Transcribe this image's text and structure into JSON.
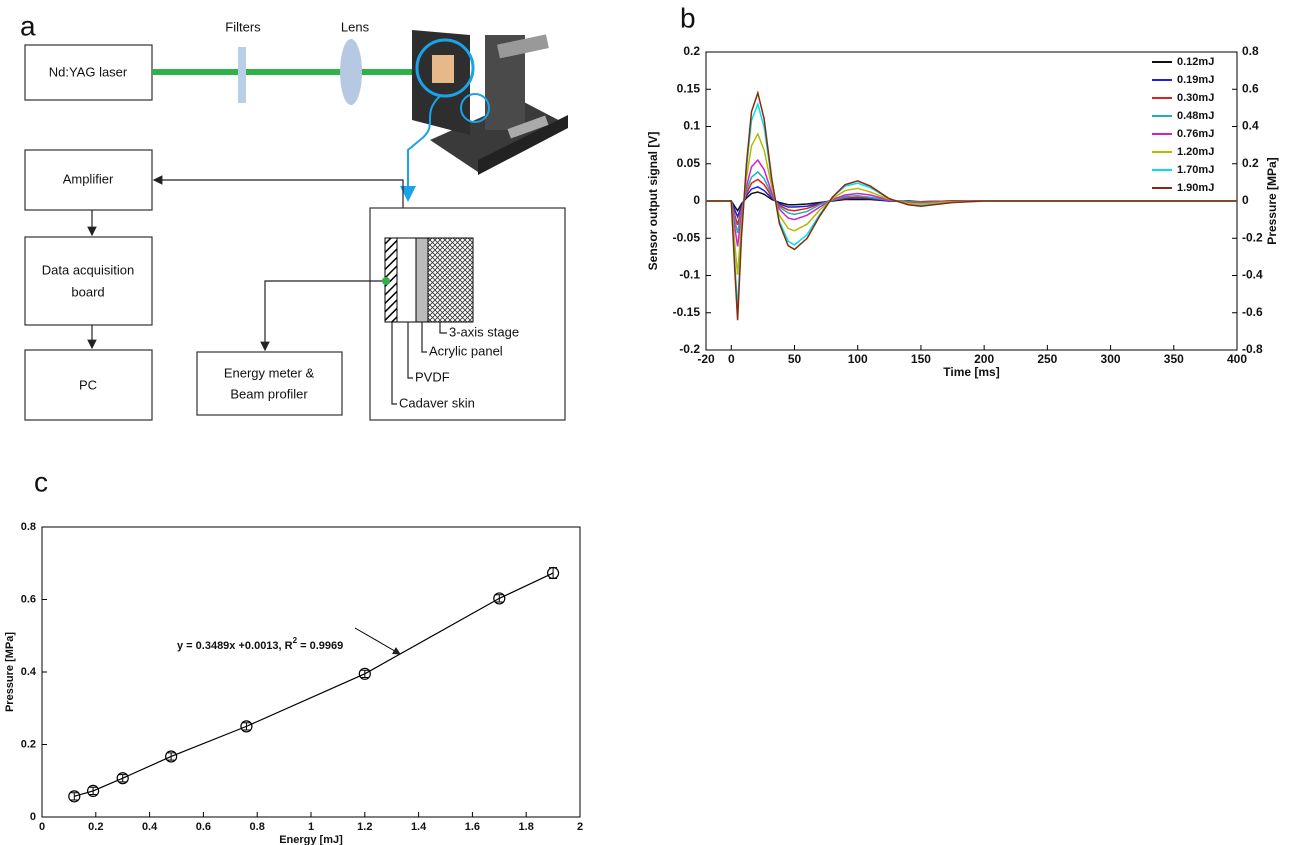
{
  "panel_labels": [
    "a",
    "b",
    "c"
  ],
  "diagram": {
    "laser": "Nd:YAG laser",
    "filters": "Filters",
    "lens": "Lens",
    "amplifier": "Amplifier",
    "daq": [
      "Data acquisition",
      "board"
    ],
    "pc": "PC",
    "energy_meter": [
      "Energy meter &",
      "Beam profiler"
    ],
    "stage": "3-axis stage",
    "acrylic": "Acrylic panel",
    "pvdf": "PVDF",
    "skin": "Cadaver skin"
  },
  "chart_data": [
    {
      "type": "line",
      "xlabel": "Time [ms]",
      "ylabel": "Sensor output signal [V]",
      "y2label": "Pressure [MPa]",
      "xlim": [
        -20,
        400
      ],
      "xticks": [
        -20,
        0,
        50,
        100,
        150,
        200,
        250,
        300,
        350,
        400
      ],
      "ylim": [
        -0.2,
        0.2
      ],
      "yticks": [
        -0.2,
        -0.15,
        -0.1,
        -0.05,
        0,
        0.05,
        0.1,
        0.15,
        0.2
      ],
      "y2lim": [
        -0.8,
        0.8
      ],
      "y2ticks": [
        -0.8,
        -0.6,
        -0.4,
        -0.2,
        0,
        0.2,
        0.4,
        0.6,
        0.8
      ],
      "legend": "upper right",
      "x": [
        -20,
        0,
        3,
        5,
        8,
        12,
        16,
        21,
        26,
        32,
        38,
        45,
        50,
        60,
        70,
        80,
        90,
        100,
        110,
        125,
        140,
        150,
        175,
        200,
        250,
        300,
        350,
        400
      ],
      "series": [
        {
          "name": "0.12mJ",
          "color": "#111111",
          "values": [
            0,
            0,
            -0.008,
            -0.013,
            -0.004,
            0.004,
            0.01,
            0.012,
            0.009,
            0.002,
            -0.002,
            -0.005,
            -0.005,
            -0.004,
            -0.002,
            0,
            0.002,
            0.002,
            0.002,
            0,
            0,
            -0.001,
            0,
            0,
            0,
            0,
            0,
            0
          ]
        },
        {
          "name": "0.19mJ",
          "color": "#1f1fe0",
          "values": [
            0,
            0,
            -0.013,
            -0.021,
            -0.007,
            0.007,
            0.016,
            0.019,
            0.014,
            0.004,
            -0.004,
            -0.008,
            -0.008,
            -0.007,
            -0.003,
            0.001,
            0.003,
            0.004,
            0.003,
            0,
            -0.001,
            -0.001,
            0,
            0,
            0,
            0,
            0,
            0
          ]
        },
        {
          "name": "0.30mJ",
          "color": "#e01f1f",
          "values": [
            0,
            0,
            -0.02,
            -0.032,
            -0.01,
            0.01,
            0.024,
            0.029,
            0.022,
            0.006,
            -0.006,
            -0.012,
            -0.013,
            -0.01,
            -0.004,
            0.001,
            0.004,
            0.005,
            0.004,
            0.001,
            -0.001,
            -0.001,
            0,
            0,
            0,
            0,
            0,
            0
          ]
        },
        {
          "name": "0.48mJ",
          "color": "#22b0b0",
          "values": [
            0,
            0,
            -0.027,
            -0.043,
            -0.014,
            0.014,
            0.032,
            0.039,
            0.03,
            0.008,
            -0.008,
            -0.016,
            -0.018,
            -0.014,
            -0.005,
            0.001,
            0.006,
            0.007,
            0.005,
            0.001,
            -0.001,
            -0.002,
            -0.001,
            0,
            0,
            0,
            0,
            0
          ]
        },
        {
          "name": "0.76mJ",
          "color": "#d020d0",
          "values": [
            0,
            0,
            -0.038,
            -0.061,
            -0.019,
            0.019,
            0.046,
            0.055,
            0.042,
            0.011,
            -0.011,
            -0.023,
            -0.025,
            -0.019,
            -0.008,
            0.002,
            0.008,
            0.01,
            0.008,
            0.001,
            -0.002,
            -0.003,
            -0.001,
            0,
            0,
            0,
            0,
            0
          ]
        },
        {
          "name": "1.20mJ",
          "color": "#b8b800",
          "values": [
            0,
            0,
            -0.062,
            -0.099,
            -0.031,
            0.031,
            0.074,
            0.09,
            0.068,
            0.019,
            -0.019,
            -0.037,
            -0.04,
            -0.031,
            -0.012,
            0.003,
            0.014,
            0.017,
            0.012,
            0.002,
            -0.003,
            -0.004,
            -0.001,
            0,
            0,
            0,
            0,
            0
          ]
        },
        {
          "name": "1.70mJ",
          "color": "#00e0f0",
          "values": [
            0,
            0,
            -0.09,
            -0.144,
            -0.045,
            0.045,
            0.108,
            0.13,
            0.099,
            0.027,
            -0.027,
            -0.054,
            -0.059,
            -0.045,
            -0.018,
            0.005,
            0.02,
            0.024,
            0.018,
            0.003,
            -0.005,
            -0.006,
            -0.002,
            0,
            0,
            0,
            0,
            0
          ]
        },
        {
          "name": "1.90mJ",
          "color": "#8b2a0a",
          "values": [
            0,
            0,
            -0.1,
            -0.16,
            -0.05,
            0.05,
            0.12,
            0.145,
            0.11,
            0.03,
            -0.03,
            -0.06,
            -0.065,
            -0.05,
            -0.02,
            0.005,
            0.022,
            0.027,
            0.02,
            0.003,
            -0.005,
            -0.007,
            -0.002,
            0,
            0,
            0,
            0,
            0
          ]
        }
      ]
    },
    {
      "type": "scatter",
      "xlabel": "Energy [mJ]",
      "ylabel": "Pressure [MPa]",
      "xlim": [
        0,
        2
      ],
      "xticks": [
        0,
        0.2,
        0.4,
        0.6,
        0.8,
        1,
        1.2,
        1.4,
        1.6,
        1.8,
        2
      ],
      "ylim": [
        0,
        0.8
      ],
      "yticks": [
        0,
        0.2,
        0.4,
        0.6,
        0.8
      ],
      "color": "#000000",
      "x": [
        0.12,
        0.19,
        0.3,
        0.48,
        0.76,
        1.2,
        1.7,
        1.9
      ],
      "values": [
        0.057,
        0.072,
        0.107,
        0.167,
        0.25,
        0.395,
        0.603,
        0.673
      ],
      "errors": [
        0.01,
        0.01,
        0.01,
        0.01,
        0.01,
        0.01,
        0.01,
        0.015
      ],
      "annotation": [
        "y = 0.3489x +0.0013, R",
        "2",
        " = 0.9969"
      ]
    }
  ]
}
